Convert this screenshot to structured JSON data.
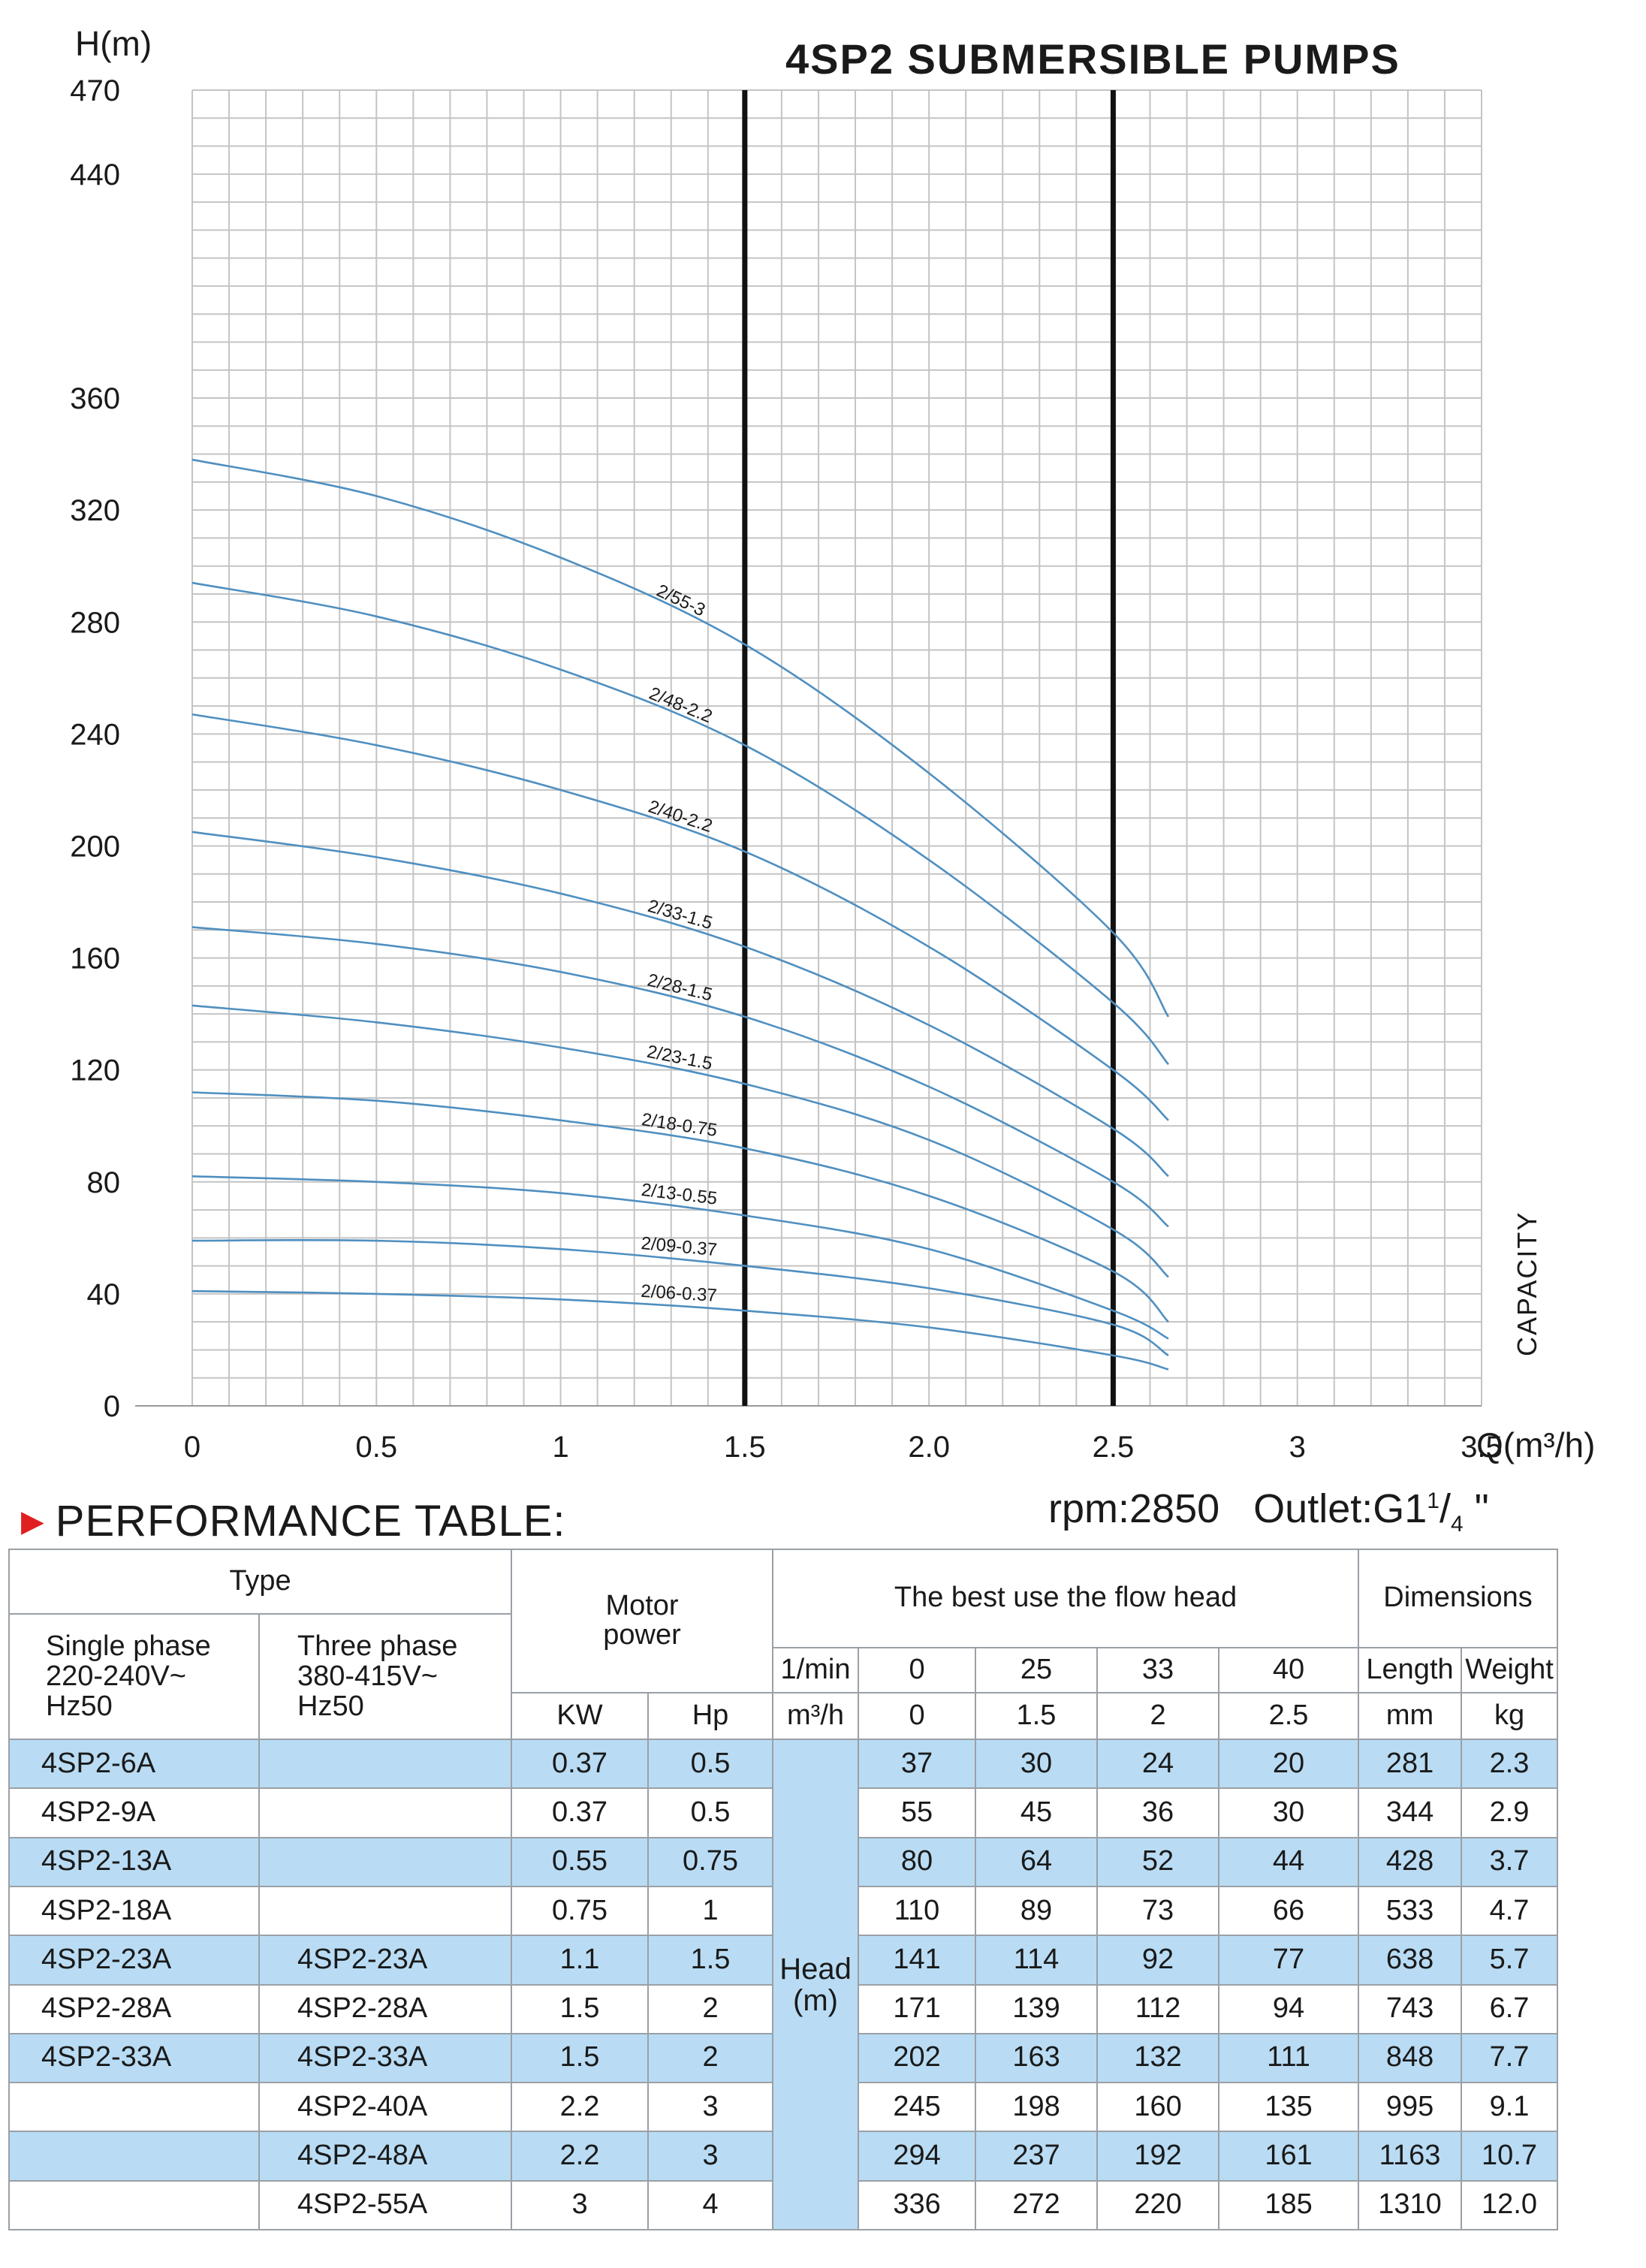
{
  "chart_data": {
    "type": "line",
    "title": "4SP2 SUBMERSIBLE PUMPS",
    "ylabel": "H(m)",
    "xlabel": "Q(m³/h)",
    "side_label": "CAPACITY",
    "ylim": [
      0,
      470
    ],
    "xlim": [
      0,
      3.5
    ],
    "yticks": [
      0,
      40,
      80,
      120,
      160,
      200,
      240,
      280,
      320,
      360,
      440,
      470
    ],
    "xticks": [
      {
        "value": 0,
        "label": "0"
      },
      {
        "value": 0.5,
        "label": "0.5"
      },
      {
        "value": 1,
        "label": "1"
      },
      {
        "value": 1.5,
        "label": "1.5"
      },
      {
        "value": 2,
        "label": "2.0"
      },
      {
        "value": 2.5,
        "label": "2.5"
      },
      {
        "value": 3,
        "label": "3"
      },
      {
        "value": 3.5,
        "label": "3.5"
      }
    ],
    "grid": true,
    "reference_lines_x": [
      1.5,
      2.5
    ],
    "series": [
      {
        "name": "2/55-3",
        "x": [
          0,
          0.5,
          1.0,
          1.5,
          2.0,
          2.5,
          2.65
        ],
        "y": [
          338,
          325,
          303,
          272,
          226,
          169,
          139
        ]
      },
      {
        "name": "2/48-2.2",
        "x": [
          0,
          0.5,
          1.0,
          1.5,
          2.0,
          2.5,
          2.65
        ],
        "y": [
          294,
          282,
          263,
          236,
          195,
          144,
          122
        ]
      },
      {
        "name": "2/40-2.2",
        "x": [
          0,
          0.5,
          1.0,
          1.5,
          2.0,
          2.5,
          2.65
        ],
        "y": [
          247,
          236,
          220,
          198,
          164,
          120,
          102
        ]
      },
      {
        "name": "2/33-1.5",
        "x": [
          0,
          0.5,
          1.0,
          1.5,
          2.0,
          2.5,
          2.65
        ],
        "y": [
          205,
          196,
          183,
          164,
          136,
          99,
          82
        ]
      },
      {
        "name": "2/28-1.5",
        "x": [
          0,
          0.5,
          1.0,
          1.5,
          2.0,
          2.5,
          2.65
        ],
        "y": [
          171,
          165,
          155,
          139,
          114,
          80,
          64
        ]
      },
      {
        "name": "2/23-1.5",
        "x": [
          0,
          0.5,
          1.0,
          1.5,
          2.0,
          2.5,
          2.65
        ],
        "y": [
          143,
          137,
          128,
          115,
          95,
          63,
          46
        ]
      },
      {
        "name": "2/18-0.75",
        "x": [
          0,
          0.5,
          1.0,
          1.5,
          2.0,
          2.5,
          2.65
        ],
        "y": [
          112,
          109,
          102,
          92,
          75,
          48,
          30
        ]
      },
      {
        "name": "2/13-0.55",
        "x": [
          0,
          0.5,
          1.0,
          1.5,
          2.0,
          2.5,
          2.65
        ],
        "y": [
          82,
          80,
          76,
          68,
          56,
          34,
          24
        ]
      },
      {
        "name": "2/09-0.37",
        "x": [
          0,
          0.5,
          1.0,
          1.5,
          2.0,
          2.5,
          2.65
        ],
        "y": [
          59,
          59,
          56,
          50,
          42,
          29,
          18
        ]
      },
      {
        "name": "2/06-0.37",
        "x": [
          0,
          0.5,
          1.0,
          1.5,
          2.0,
          2.5,
          2.65
        ],
        "y": [
          41,
          40,
          38,
          34,
          28,
          18,
          13
        ]
      }
    ]
  },
  "table_section": {
    "title": "PERFORMANCE TABLE:",
    "rpm": "rpm:2850",
    "outlet_prefix": "Outlet:G1",
    "outlet_sup": "1",
    "outlet_slash": "/",
    "outlet_sub": "4",
    "outlet_suffix": " \""
  },
  "table": {
    "type_header": "Type",
    "single_phase_header": [
      "Single phase",
      "220-240V~",
      "Hz50"
    ],
    "three_phase_header": [
      "Three phase",
      "380-415V~",
      "Hz50"
    ],
    "motor_power_header": [
      "Motor",
      "power"
    ],
    "flow_head_header": "The best use the flow head",
    "dimensions_header": "Dimensions",
    "lmin_label": "1/min",
    "m3h_label": "m³/h",
    "lmin_values": [
      "0",
      "25",
      "33",
      "40"
    ],
    "m3h_values": [
      "0",
      "1.5",
      "2",
      "2.5"
    ],
    "length_label": "Length",
    "weight_label": "Weight",
    "kw_label": "KW",
    "hp_label": "Hp",
    "mm_label": "mm",
    "kg_label": "kg",
    "head_label": [
      "Head",
      "(m)"
    ],
    "rows": [
      {
        "single": "4SP2-6A",
        "three": "",
        "kw": "0.37",
        "hp": "0.5",
        "h0": "37",
        "h1": "30",
        "h2": "24",
        "h3": "20",
        "length": "281",
        "weight": "2.3"
      },
      {
        "single": "4SP2-9A",
        "three": "",
        "kw": "0.37",
        "hp": "0.5",
        "h0": "55",
        "h1": "45",
        "h2": "36",
        "h3": "30",
        "length": "344",
        "weight": "2.9"
      },
      {
        "single": "4SP2-13A",
        "three": "",
        "kw": "0.55",
        "hp": "0.75",
        "h0": "80",
        "h1": "64",
        "h2": "52",
        "h3": "44",
        "length": "428",
        "weight": "3.7"
      },
      {
        "single": "4SP2-18A",
        "three": "",
        "kw": "0.75",
        "hp": "1",
        "h0": "110",
        "h1": "89",
        "h2": "73",
        "h3": "66",
        "length": "533",
        "weight": "4.7"
      },
      {
        "single": "4SP2-23A",
        "three": "4SP2-23A",
        "kw": "1.1",
        "hp": "1.5",
        "h0": "141",
        "h1": "114",
        "h2": "92",
        "h3": "77",
        "length": "638",
        "weight": "5.7"
      },
      {
        "single": "4SP2-28A",
        "three": "4SP2-28A",
        "kw": "1.5",
        "hp": "2",
        "h0": "171",
        "h1": "139",
        "h2": "112",
        "h3": "94",
        "length": "743",
        "weight": "6.7"
      },
      {
        "single": "4SP2-33A",
        "three": "4SP2-33A",
        "kw": "1.5",
        "hp": "2",
        "h0": "202",
        "h1": "163",
        "h2": "132",
        "h3": "111",
        "length": "848",
        "weight": "7.7"
      },
      {
        "single": "",
        "three": "4SP2-40A",
        "kw": "2.2",
        "hp": "3",
        "h0": "245",
        "h1": "198",
        "h2": "160",
        "h3": "135",
        "length": "995",
        "weight": "9.1"
      },
      {
        "single": "",
        "three": "4SP2-48A",
        "kw": "2.2",
        "hp": "3",
        "h0": "294",
        "h1": "237",
        "h2": "192",
        "h3": "161",
        "length": "1163",
        "weight": "10.7"
      },
      {
        "single": "",
        "three": "4SP2-55A",
        "kw": "3",
        "hp": "4",
        "h0": "336",
        "h1": "272",
        "h2": "220",
        "h3": "185",
        "length": "1310",
        "weight": "12.0"
      }
    ]
  }
}
